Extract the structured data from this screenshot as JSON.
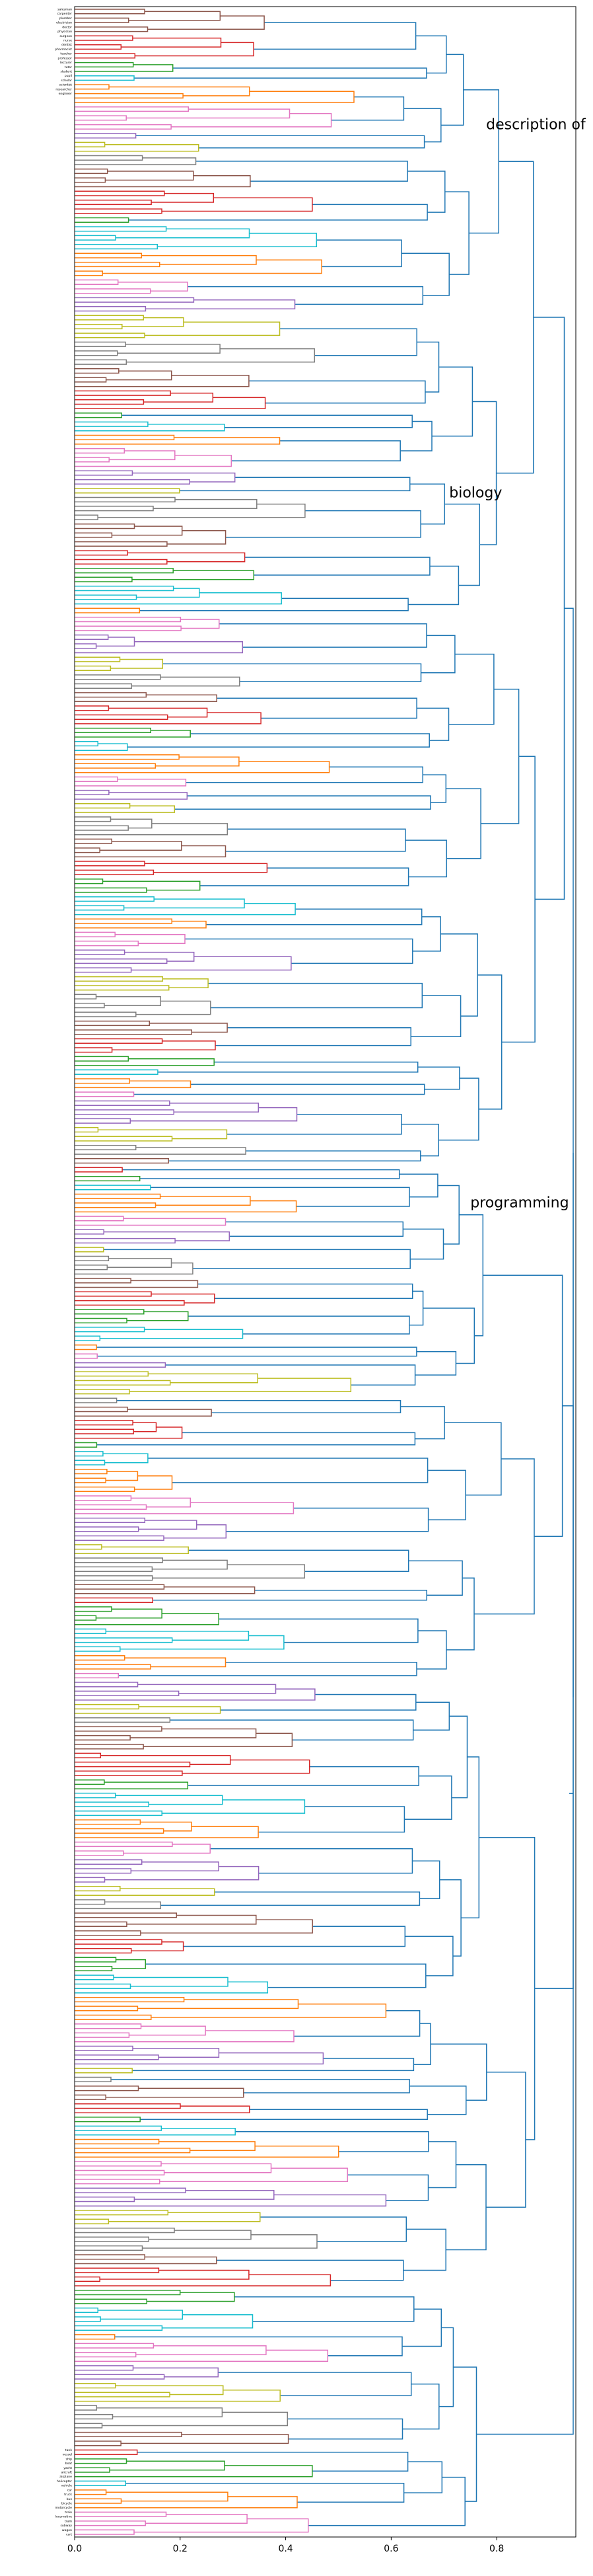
{
  "chart_data": {
    "type": "dendrogram",
    "orientation": "horizontal",
    "xlim": [
      0.0,
      0.95
    ],
    "xticks": [
      "0.0",
      "0.2",
      "0.4",
      "0.6",
      "0.8"
    ],
    "grid": false,
    "legend": "none",
    "leaf_count": 570,
    "leaf_labels_top": [
      "salesman",
      "carpenter",
      "plumber",
      "electrician",
      "doctor",
      "physician",
      "surgeon",
      "nurse",
      "dentist",
      "pharmacist",
      "teacher",
      "professor",
      "lecturer",
      "tutor",
      "student",
      "pupil",
      "scholar",
      "scientist",
      "researcher",
      "engineer"
    ],
    "leaf_labels_bottom": [
      "tank",
      "vessel",
      "ship",
      "boat",
      "yacht",
      "aircraft",
      "airplane",
      "helicopter",
      "vehicle",
      "car",
      "truck",
      "bus",
      "bicycle",
      "motorcycle",
      "train",
      "locomotive",
      "tram",
      "subway",
      "wagon",
      "cart"
    ],
    "annotations": [
      {
        "text": "description of",
        "x": 0.78,
        "leaf_index": 27
      },
      {
        "text": "biology",
        "x": 0.71,
        "leaf_index": 110
      },
      {
        "text": "programming",
        "x": 0.75,
        "leaf_index": 270
      }
    ],
    "cluster_colors": [
      "#8c564b",
      "#d62728",
      "#2ca02c",
      "#17becf",
      "#ff7f0e",
      "#e377c2",
      "#9467bd",
      "#bcbd22",
      "#7f7f7f"
    ],
    "link_color_above_threshold": "#1f77b4",
    "color_threshold": 0.6
  }
}
